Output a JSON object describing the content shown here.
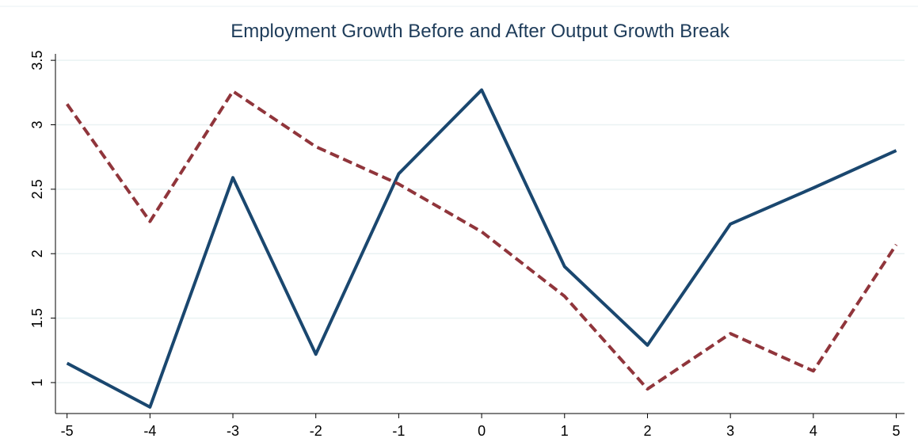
{
  "chart_data": {
    "type": "line",
    "title": "Employment Growth Before and After Output Growth Break",
    "x": [
      -5,
      -4,
      -3,
      -2,
      -1,
      0,
      1,
      2,
      3,
      4,
      5
    ],
    "series": [
      {
        "color": "#1a476f",
        "dash": false,
        "values": [
          1.15,
          0.81,
          2.59,
          1.22,
          2.62,
          3.27,
          1.9,
          1.29,
          2.23,
          2.51,
          2.8
        ]
      },
      {
        "color": "#90353b",
        "dash": true,
        "values": [
          3.16,
          2.25,
          3.26,
          2.83,
          2.54,
          2.17,
          1.67,
          0.95,
          1.38,
          1.09,
          2.07
        ]
      }
    ],
    "xlim": [
      -5.14,
      5.1
    ],
    "xticks": [
      -5,
      -4,
      -3,
      -2,
      -1,
      0,
      1,
      2,
      3,
      4,
      5
    ],
    "ylim": [
      0.76,
      3.55
    ],
    "yticks": [
      1,
      1.5,
      2,
      2.5,
      3,
      3.5
    ],
    "grid": true
  }
}
